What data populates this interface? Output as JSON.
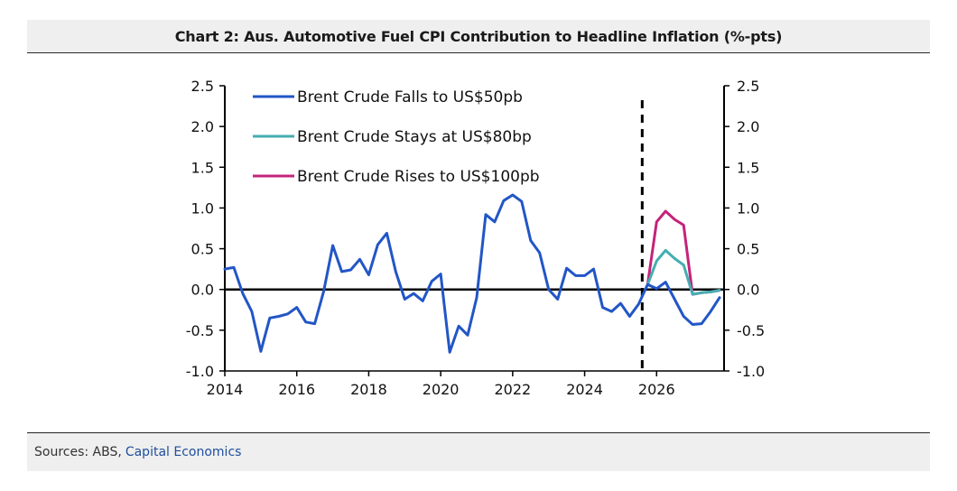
{
  "chart_data": {
    "type": "line",
    "title": "Chart 2: Aus. Automotive Fuel CPI Contribution to Headline Inflation (%-pts)",
    "xlabel": "",
    "ylabel": "",
    "xlim": [
      2014,
      2027.875
    ],
    "ylim": [
      -1.0,
      2.5
    ],
    "x_ticks": [
      2014,
      2016,
      2018,
      2020,
      2022,
      2024,
      2026
    ],
    "y_ticks": [
      -1.0,
      -0.5,
      0.0,
      0.5,
      1.0,
      1.5,
      2.0,
      2.5
    ],
    "y_tick_labels": [
      "-1.0",
      "-0.5",
      "0.0",
      "0.5",
      "1.0",
      "1.5",
      "2.0",
      "2.5"
    ],
    "forecast_line_x": 2025.6,
    "legend_position": "top-left",
    "series": [
      {
        "name": "Brent Crude Falls to US$50pb",
        "color": "#2256c6",
        "points": [
          [
            2014.0,
            0.25
          ],
          [
            2014.25,
            0.27
          ],
          [
            2014.5,
            -0.05
          ],
          [
            2014.75,
            -0.27
          ],
          [
            2015.0,
            -0.76
          ],
          [
            2015.25,
            -0.35
          ],
          [
            2015.5,
            -0.33
          ],
          [
            2015.75,
            -0.3
          ],
          [
            2016.0,
            -0.22
          ],
          [
            2016.25,
            -0.4
          ],
          [
            2016.5,
            -0.42
          ],
          [
            2016.75,
            -0.02
          ],
          [
            2017.0,
            0.54
          ],
          [
            2017.25,
            0.22
          ],
          [
            2017.5,
            0.24
          ],
          [
            2017.75,
            0.37
          ],
          [
            2018.0,
            0.18
          ],
          [
            2018.25,
            0.55
          ],
          [
            2018.5,
            0.69
          ],
          [
            2018.75,
            0.22
          ],
          [
            2019.0,
            -0.12
          ],
          [
            2019.25,
            -0.05
          ],
          [
            2019.5,
            -0.14
          ],
          [
            2019.75,
            0.1
          ],
          [
            2020.0,
            0.19
          ],
          [
            2020.25,
            -0.77
          ],
          [
            2020.5,
            -0.45
          ],
          [
            2020.75,
            -0.56
          ],
          [
            2021.0,
            -0.1
          ],
          [
            2021.25,
            0.92
          ],
          [
            2021.5,
            0.83
          ],
          [
            2021.75,
            1.09
          ],
          [
            2022.0,
            1.16
          ],
          [
            2022.25,
            1.08
          ],
          [
            2022.5,
            0.6
          ],
          [
            2022.75,
            0.45
          ],
          [
            2023.0,
            0.0
          ],
          [
            2023.25,
            -0.12
          ],
          [
            2023.5,
            0.26
          ],
          [
            2023.75,
            0.17
          ],
          [
            2024.0,
            0.17
          ],
          [
            2024.25,
            0.25
          ],
          [
            2024.5,
            -0.22
          ],
          [
            2024.75,
            -0.27
          ],
          [
            2025.0,
            -0.17
          ],
          [
            2025.25,
            -0.33
          ],
          [
            2025.5,
            -0.18
          ],
          [
            2025.75,
            0.06
          ],
          [
            2026.0,
            0.01
          ],
          [
            2026.25,
            0.09
          ],
          [
            2026.5,
            -0.12
          ],
          [
            2026.75,
            -0.33
          ],
          [
            2027.0,
            -0.43
          ],
          [
            2027.25,
            -0.42
          ],
          [
            2027.5,
            -0.27
          ],
          [
            2027.75,
            -0.1
          ]
        ]
      },
      {
        "name": "Brent Crude Stays at US$80bp",
        "color": "#45aeb1",
        "points": [
          [
            2025.75,
            0.06
          ],
          [
            2026.0,
            0.35
          ],
          [
            2026.25,
            0.48
          ],
          [
            2026.5,
            0.38
          ],
          [
            2026.75,
            0.3
          ],
          [
            2027.0,
            -0.06
          ],
          [
            2027.25,
            -0.04
          ],
          [
            2027.5,
            -0.03
          ],
          [
            2027.75,
            -0.01
          ]
        ]
      },
      {
        "name": "Brent Crude Rises to US$100pb",
        "color": "#c4237a",
        "points": [
          [
            2025.75,
            0.06
          ],
          [
            2026.0,
            0.83
          ],
          [
            2026.25,
            0.96
          ],
          [
            2026.5,
            0.86
          ],
          [
            2026.75,
            0.79
          ],
          [
            2027.0,
            -0.06
          ],
          [
            2027.25,
            -0.04
          ],
          [
            2027.5,
            -0.03
          ],
          [
            2027.75,
            -0.01
          ]
        ]
      }
    ]
  },
  "sources": {
    "label": "Sources: ABS,",
    "link": "Capital Economics"
  }
}
